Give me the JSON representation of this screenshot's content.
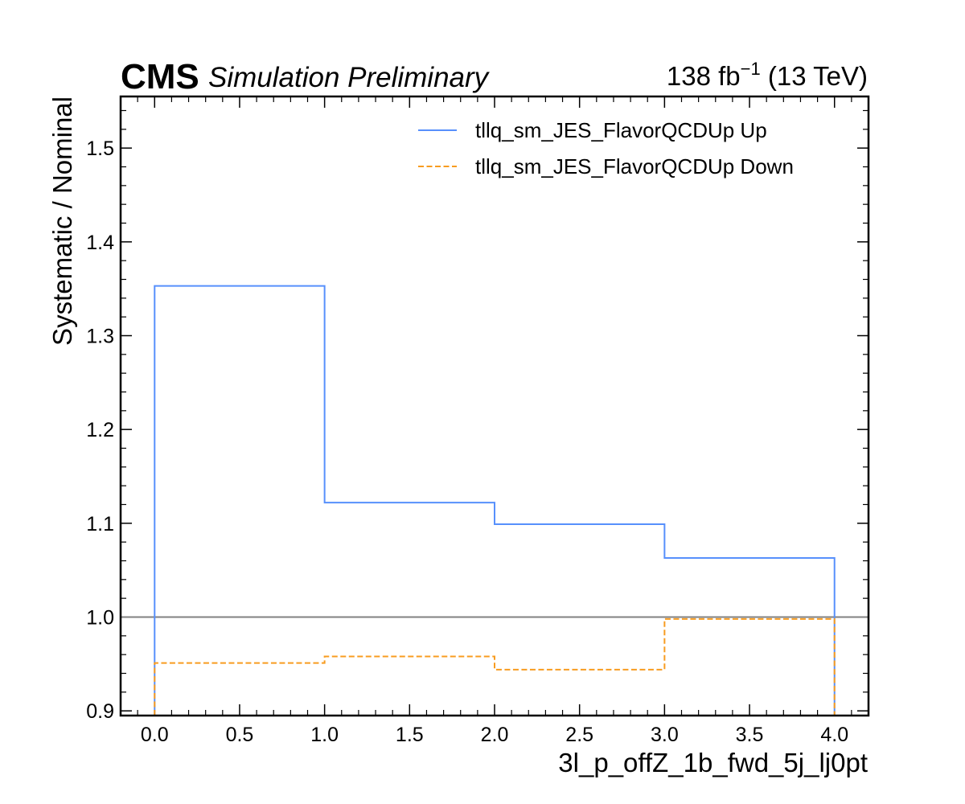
{
  "header": {
    "experiment": "CMS",
    "status": "Simulation Preliminary",
    "lumi_value": "138 fb",
    "lumi_exp": "−1",
    "energy": " (13 TeV)"
  },
  "chart_data": {
    "type": "line",
    "drawstyle": "steps",
    "xlabel": "3l_p_offZ_1b_fwd_5j_lj0pt",
    "ylabel": "Systematic / Nominal",
    "xlim": [
      -0.2,
      4.2
    ],
    "ylim": [
      0.895,
      1.555
    ],
    "xticks": [
      0.0,
      0.5,
      1.0,
      1.5,
      2.0,
      2.5,
      3.0,
      3.5,
      4.0
    ],
    "xtick_labels": [
      "0.0",
      "0.5",
      "1.0",
      "1.5",
      "2.0",
      "2.5",
      "3.0",
      "3.5",
      "4.0"
    ],
    "yticks": [
      0.9,
      1.0,
      1.1,
      1.2,
      1.3,
      1.4,
      1.5
    ],
    "ytick_labels": [
      "0.9",
      "1.0",
      "1.1",
      "1.2",
      "1.3",
      "1.4",
      "1.5"
    ],
    "bin_edges": [
      0,
      1,
      2,
      3,
      4
    ],
    "reference_line": 1.0,
    "legend_position": "top-right",
    "series": [
      {
        "name": "tllq_sm_JES_FlavorQCDUp Up",
        "values": [
          1.353,
          1.122,
          1.099,
          1.063
        ],
        "color": "#5790fc",
        "style": "solid"
      },
      {
        "name": "tllq_sm_JES_FlavorQCDUp Down",
        "values": [
          0.951,
          0.958,
          0.944,
          0.998
        ],
        "color": "#f89c20",
        "style": "dashed"
      }
    ],
    "reference_color": "#808080"
  }
}
